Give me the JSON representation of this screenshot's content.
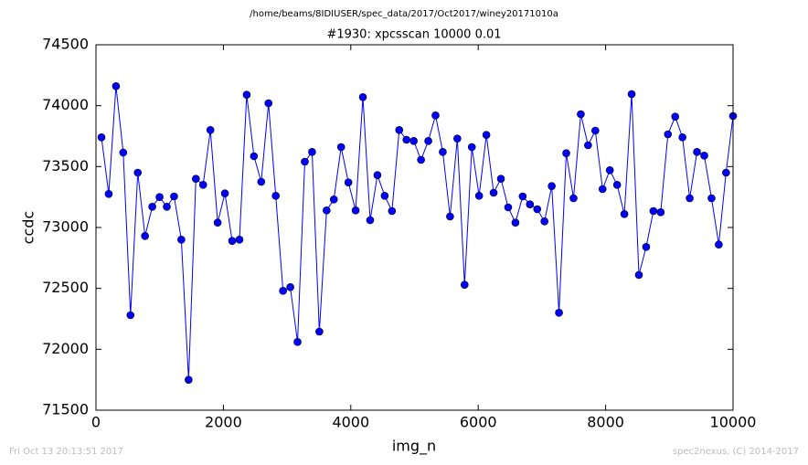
{
  "chart_data": {
    "type": "line",
    "suptitle": "/home/beams/8IDIUSER/spec_data/2017/Oct2017/winey20171010a",
    "title": "#1930: xpcsscan 10000 0.01",
    "xlabel": "img_n",
    "ylabel": "ccdc",
    "footer_left": "Fri Oct 13 20:13:51 2017",
    "footer_right": "spec2nexus, (C) 2014-2017",
    "xlim": [
      0,
      10000
    ],
    "ylim": [
      71500,
      74500
    ],
    "xticks": [
      0,
      2000,
      4000,
      6000,
      8000,
      10000
    ],
    "yticks": [
      71500,
      72000,
      72500,
      73000,
      73500,
      74000,
      74500
    ],
    "grid": false,
    "series": [
      {
        "color": "#0000ff",
        "x": [
          86,
          200,
          314,
          428,
          542,
          656,
          770,
          884,
          998,
          1112,
          1226,
          1340,
          1454,
          1568,
          1682,
          1796,
          1910,
          2024,
          2138,
          2252,
          2366,
          2480,
          2594,
          2708,
          2822,
          2936,
          3050,
          3164,
          3278,
          3392,
          3506,
          3620,
          3734,
          3848,
          3962,
          4076,
          4190,
          4304,
          4418,
          4532,
          4646,
          4760,
          4874,
          4988,
          5102,
          5216,
          5330,
          5444,
          5558,
          5672,
          5786,
          5900,
          6014,
          6128,
          6242,
          6356,
          6470,
          6584,
          6698,
          6812,
          6926,
          7040,
          7154,
          7268,
          7382,
          7496,
          7610,
          7724,
          7838,
          7952,
          8066,
          8180,
          8294,
          8408,
          8522,
          8636,
          8750,
          8864,
          8978,
          9092,
          9206,
          9320,
          9434,
          9548,
          9662,
          9776,
          9890,
          10000
        ],
        "values": [
          73740,
          73275,
          74160,
          73615,
          72280,
          73450,
          72930,
          73170,
          73250,
          73170,
          73255,
          72900,
          71750,
          73400,
          73350,
          73800,
          73040,
          73280,
          72890,
          72900,
          74090,
          73585,
          73375,
          74020,
          73260,
          72480,
          72510,
          72060,
          73540,
          73620,
          72145,
          73140,
          73230,
          73660,
          73370,
          73140,
          74070,
          73060,
          73430,
          73260,
          73135,
          73800,
          73720,
          73710,
          73555,
          73710,
          73920,
          73620,
          73090,
          73730,
          72530,
          73660,
          73260,
          73760,
          73285,
          73400,
          73165,
          73040,
          73255,
          73190,
          73150,
          73050,
          73340,
          72300,
          73610,
          73240,
          73930,
          73675,
          73795,
          73315,
          73470,
          73350,
          73110,
          74095,
          72610,
          72840,
          73135,
          73125,
          73765,
          73910,
          73740,
          73240,
          73620,
          73590,
          73240,
          72860,
          73450,
          73915
        ]
      }
    ]
  }
}
